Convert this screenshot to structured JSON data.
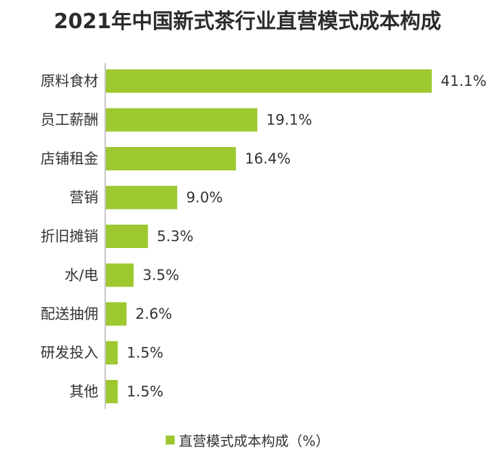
{
  "chart_data": {
    "type": "bar",
    "orientation": "horizontal",
    "title": "2021年中国新式茶行业直营模式成本构成",
    "categories": [
      "原料食材",
      "员工薪酬",
      "店铺租金",
      "营销",
      "折旧摊销",
      "水/电",
      "配送抽佣",
      "研发投入",
      "其他"
    ],
    "series": [
      {
        "name": "直营模式成本构成（%）",
        "values": [
          41.1,
          19.1,
          16.4,
          9.0,
          5.3,
          3.5,
          2.6,
          1.5,
          1.5
        ],
        "value_labels": [
          "41.1%",
          "19.1%",
          "16.4%",
          "9.0%",
          "5.3%",
          "3.5%",
          "2.6%",
          "1.5%",
          "1.5%"
        ]
      }
    ],
    "xlim": [
      0,
      41.1
    ],
    "grid": false,
    "legend_position": "bottom",
    "bar_color": "#9DC82F"
  }
}
